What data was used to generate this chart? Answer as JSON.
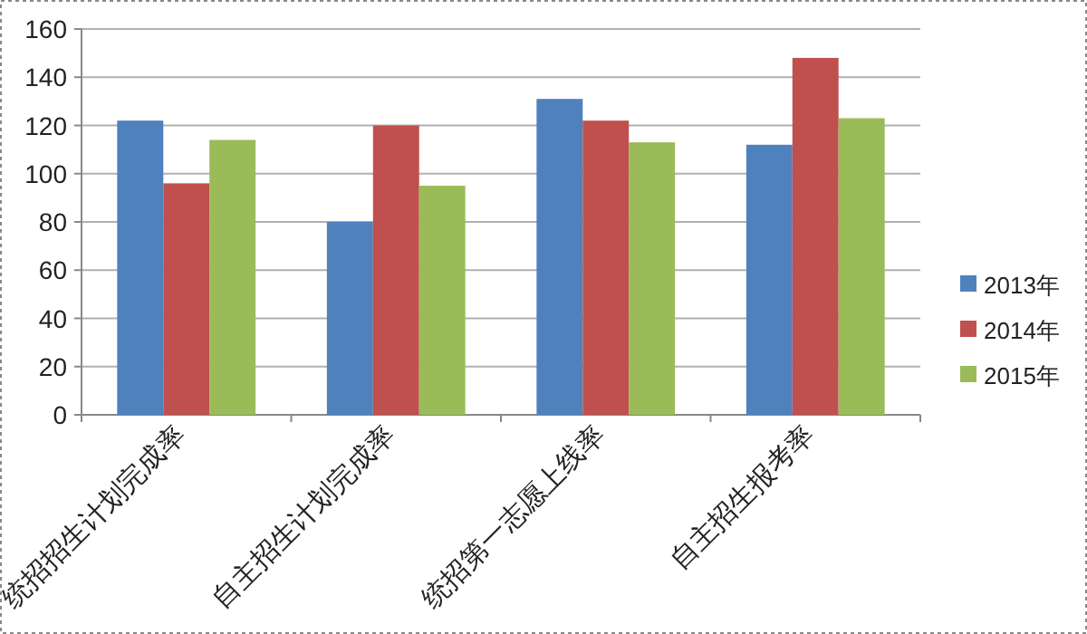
{
  "chart_data": {
    "type": "bar",
    "categories": [
      "统招招生计划完成率",
      "自主招生计划完成率",
      "统招第一志愿上线率",
      "自主招生报考率"
    ],
    "series": [
      {
        "name": "2013年",
        "color": "#4f81bd",
        "values": [
          122,
          80,
          131,
          112
        ]
      },
      {
        "name": "2014年",
        "color": "#c0504d",
        "values": [
          96,
          120,
          122,
          148
        ]
      },
      {
        "name": "2015年",
        "color": "#9bbb59",
        "values": [
          114,
          95,
          113,
          123
        ]
      }
    ],
    "ylim": [
      0,
      160
    ],
    "yticks": [
      0,
      20,
      40,
      60,
      80,
      100,
      120,
      140,
      160
    ],
    "grid": "y",
    "legend": "right"
  }
}
